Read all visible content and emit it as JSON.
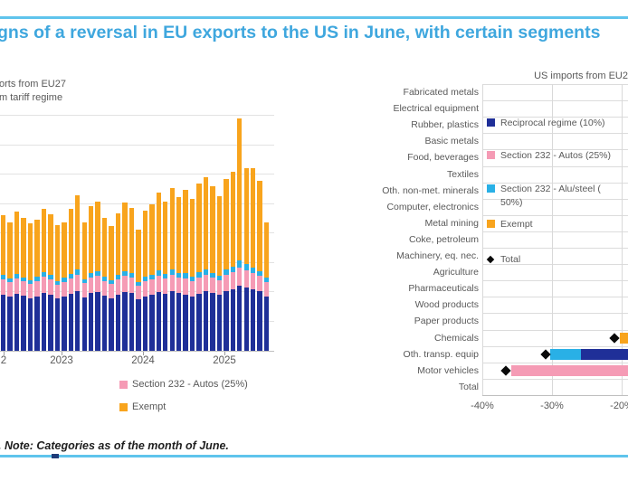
{
  "header": {
    "title_visible": "gns of a reversal in EU exports to the US in June, with certain segments",
    "title_color": "#3FA7DE",
    "rule_color": "#5FC4EC"
  },
  "footer": {
    "note_visible": ". Note: Categories as of the month of June.",
    "rule_color": "#5FC4EC"
  },
  "palette": {
    "reciprocal_navy": "#1F2F98",
    "autos_pink": "#F59BB5",
    "alusteel_blue": "#29B0E6",
    "exempt_orange": "#F8A41D",
    "total_marker_black": "#0A0A0A",
    "grid_gray": "#D9D9D9",
    "axis_gray": "#BFBFBF",
    "label_gray": "#595959"
  },
  "chart_data": [
    {
      "id": "left",
      "type": "bar",
      "orientation": "vertical",
      "stacked": true,
      "title_visible_lines": [
        "orts from EU27",
        "m tariff regime"
      ],
      "y_axis_note": "y-axis cropped out of image; values are bar-segment heights in screenshot pixels",
      "x_tick_labels": [
        "2",
        "2023",
        "2024",
        "2025"
      ],
      "categories": [
        "2022-04",
        "2022-05",
        "2022-06",
        "2022-07",
        "2022-08",
        "2022-09",
        "2022-10",
        "2022-11",
        "2022-12",
        "2023-01",
        "2023-02",
        "2023-03",
        "2023-04",
        "2023-05",
        "2023-06",
        "2023-07",
        "2023-08",
        "2023-09",
        "2023-10",
        "2023-11",
        "2023-12",
        "2024-01",
        "2024-02",
        "2024-03",
        "2024-04",
        "2024-05",
        "2024-06",
        "2024-07",
        "2024-08",
        "2024-09",
        "2024-10",
        "2024-11",
        "2024-12",
        "2025-01",
        "2025-02",
        "2025-03",
        "2025-04",
        "2025-05",
        "2025-06",
        "2025-07"
      ],
      "series": [
        {
          "name": "Reciprocal regime (10%)",
          "color": "#1F2F98",
          "values": [
            62,
            60,
            63,
            61,
            58,
            60,
            64,
            62,
            58,
            60,
            63,
            66,
            59,
            64,
            65,
            61,
            58,
            62,
            65,
            64,
            57,
            60,
            62,
            65,
            63,
            66,
            64,
            62,
            60,
            63,
            66,
            64,
            62,
            66,
            68,
            72,
            70,
            68,
            66,
            60
          ]
        },
        {
          "name": "Section 232 - Autos (25%)",
          "color": "#F59BB5",
          "values": [
            17,
            16,
            17,
            16,
            16,
            17,
            18,
            17,
            15,
            16,
            17,
            18,
            16,
            17,
            18,
            16,
            16,
            17,
            18,
            17,
            15,
            17,
            17,
            18,
            17,
            18,
            17,
            18,
            17,
            18,
            18,
            17,
            16,
            18,
            19,
            20,
            19,
            18,
            17,
            16
          ]
        },
        {
          "name": "Section 232 - Alu/steel (50%)",
          "color": "#29B0E6",
          "values": [
            5,
            4,
            5,
            4,
            4,
            5,
            5,
            5,
            4,
            5,
            5,
            6,
            4,
            5,
            5,
            5,
            4,
            5,
            5,
            5,
            4,
            5,
            5,
            6,
            5,
            6,
            5,
            6,
            5,
            6,
            6,
            5,
            5,
            6,
            6,
            8,
            7,
            6,
            5,
            5
          ]
        },
        {
          "name": "Exempt",
          "color": "#F8A41D",
          "values": [
            66,
            62,
            69,
            66,
            63,
            63,
            70,
            67,
            62,
            61,
            72,
            82,
            63,
            74,
            77,
            65,
            60,
            68,
            76,
            72,
            58,
            73,
            78,
            86,
            80,
            90,
            84,
            92,
            86,
            98,
            102,
            96,
            88,
            100,
            105,
            157,
            106,
            110,
            100,
            61
          ]
        }
      ],
      "legend_visible": [
        {
          "label": "Section 232 - Autos (25%)",
          "color": "#F59BB5"
        },
        {
          "label": "Exempt",
          "color": "#F8A41D"
        }
      ]
    },
    {
      "id": "right",
      "type": "bar",
      "orientation": "horizontal",
      "stacked": true,
      "title_visible": "US imports from EU2",
      "categories": [
        "Fabricated metals",
        "Electrical equipment",
        "Rubber, plastics",
        "Basic metals",
        "Food, beverages",
        "Textiles",
        "Oth. non-met. minerals",
        "Computer, electronics",
        "Metal mining",
        "Coke, petroleum",
        "Machinery, eq. nec.",
        "Agriculture",
        "Pharmaceuticals",
        "Wood products",
        "Paper products",
        "Chemicals",
        "Oth. transp. equip",
        "Motor vehicles",
        "Total"
      ],
      "x_tick_labels": [
        "-40%",
        "-30%",
        "-20%"
      ],
      "x_tick_values": [
        -40,
        -30,
        -20
      ],
      "xlim_visible": [
        -40,
        -19
      ],
      "crop_note": "chart clipped at right image edge; only bar portions below about -19% are visible",
      "legend": [
        {
          "lines": [
            "Reciprocal regime (10%)"
          ],
          "color": "#1F2F98",
          "marker": "square"
        },
        {
          "lines": [
            "Section 232 - Autos (25%)"
          ],
          "color": "#F59BB5",
          "marker": "square"
        },
        {
          "lines": [
            "Section 232 - Alu/steel (",
            "50%)"
          ],
          "color": "#29B0E6",
          "marker": "square"
        },
        {
          "lines": [
            "Exempt"
          ],
          "color": "#F8A41D",
          "marker": "square"
        },
        {
          "lines": [
            "Total"
          ],
          "color": "#0A0A0A",
          "marker": "diamond"
        }
      ],
      "rows_with_visible_bars": [
        {
          "category": "Chemicals",
          "total_pct": -21.0,
          "segments": [
            {
              "series": "Exempt",
              "color": "#F8A41D",
              "from_pct": -20.2,
              "to_pct": null,
              "clipped": true
            }
          ]
        },
        {
          "category": "Oth. transp. equip",
          "total_pct": -30.9,
          "segments": [
            {
              "series": "Section 232 - Alu/steel (50%)",
              "color": "#29B0E6",
              "from_pct": -30.3,
              "to_pct": -25.8,
              "clipped": false
            },
            {
              "series": "Reciprocal regime (10%)",
              "color": "#1F2F98",
              "from_pct": -25.8,
              "to_pct": null,
              "clipped": true
            }
          ]
        },
        {
          "category": "Motor vehicles",
          "total_pct": -36.6,
          "segments": [
            {
              "series": "Section 232 - Autos (25%)",
              "color": "#F59BB5",
              "from_pct": -35.9,
              "to_pct": null,
              "clipped": true
            }
          ]
        }
      ]
    }
  ]
}
